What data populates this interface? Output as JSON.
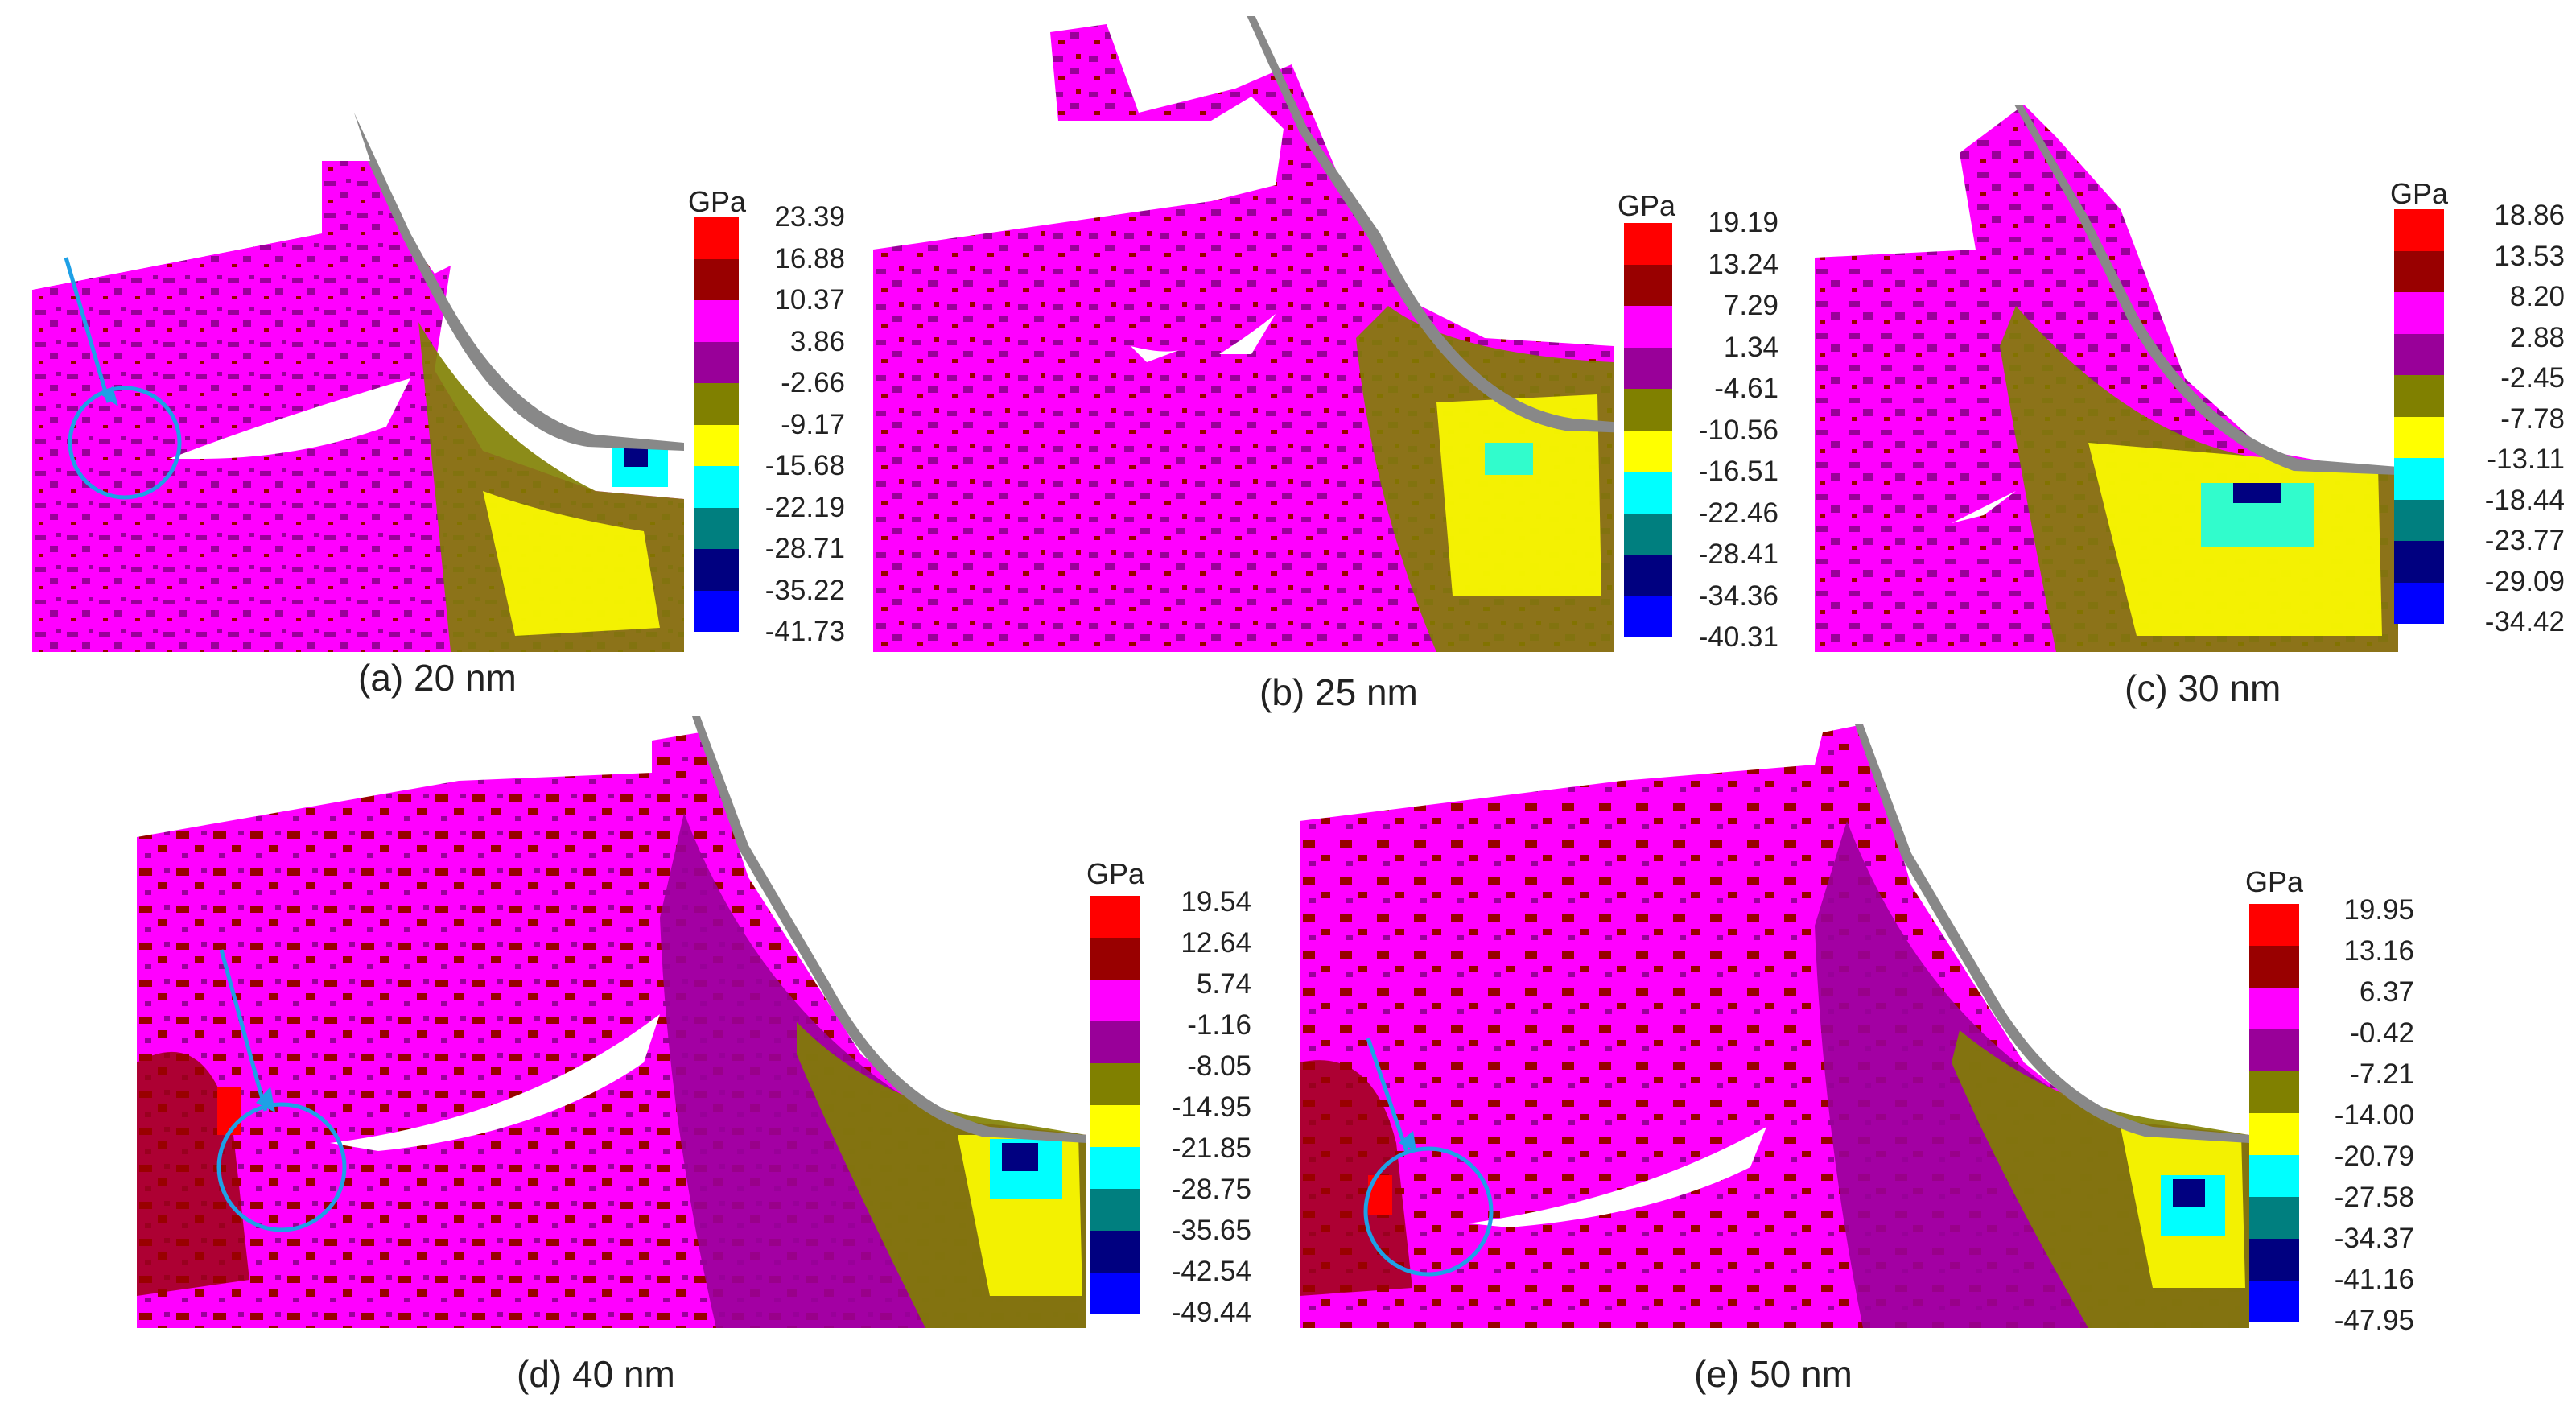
{
  "palette": [
    "#ff0000",
    "#990000",
    "#ff00ff",
    "#990099",
    "#808000",
    "#ffff00",
    "#00ffff",
    "#007f7f",
    "#000080",
    "#0000ff"
  ],
  "background": "#ffffff",
  "tool_color": "#888888",
  "marker_color": "#1ea0e6",
  "unit": "GPa",
  "panels": [
    {
      "caption": "(a) 20 nm",
      "ticks": [
        "23.39",
        "16.88",
        "10.37",
        "3.86",
        "-2.66",
        "-9.17",
        "-15.68",
        "-22.19",
        "-28.71",
        "-35.22",
        "-41.73"
      ],
      "marker": true
    },
    {
      "caption": "(b) 25 nm",
      "ticks": [
        "19.19",
        "13.24",
        "7.29",
        "1.34",
        "-4.61",
        "-10.56",
        "-16.51",
        "-22.46",
        "-28.41",
        "-34.36",
        "-40.31"
      ],
      "marker": false
    },
    {
      "caption": "(c) 30 nm",
      "ticks": [
        "18.86",
        "13.53",
        "8.20",
        "2.88",
        "-2.45",
        "-7.78",
        "-13.11",
        "-18.44",
        "-23.77",
        "-29.09",
        "-34.42"
      ],
      "marker": false
    },
    {
      "caption": "(d) 40 nm",
      "ticks": [
        "19.54",
        "12.64",
        "5.74",
        "-1.16",
        "-8.05",
        "-14.95",
        "-21.85",
        "-28.75",
        "-35.65",
        "-42.54",
        "-49.44"
      ],
      "marker": true
    },
    {
      "caption": "(e) 50 nm",
      "ticks": [
        "19.95",
        "13.16",
        "6.37",
        "-0.42",
        "-7.21",
        "-14.00",
        "-20.79",
        "-27.58",
        "-34.37",
        "-41.16",
        "-47.95"
      ],
      "marker": true
    }
  ]
}
